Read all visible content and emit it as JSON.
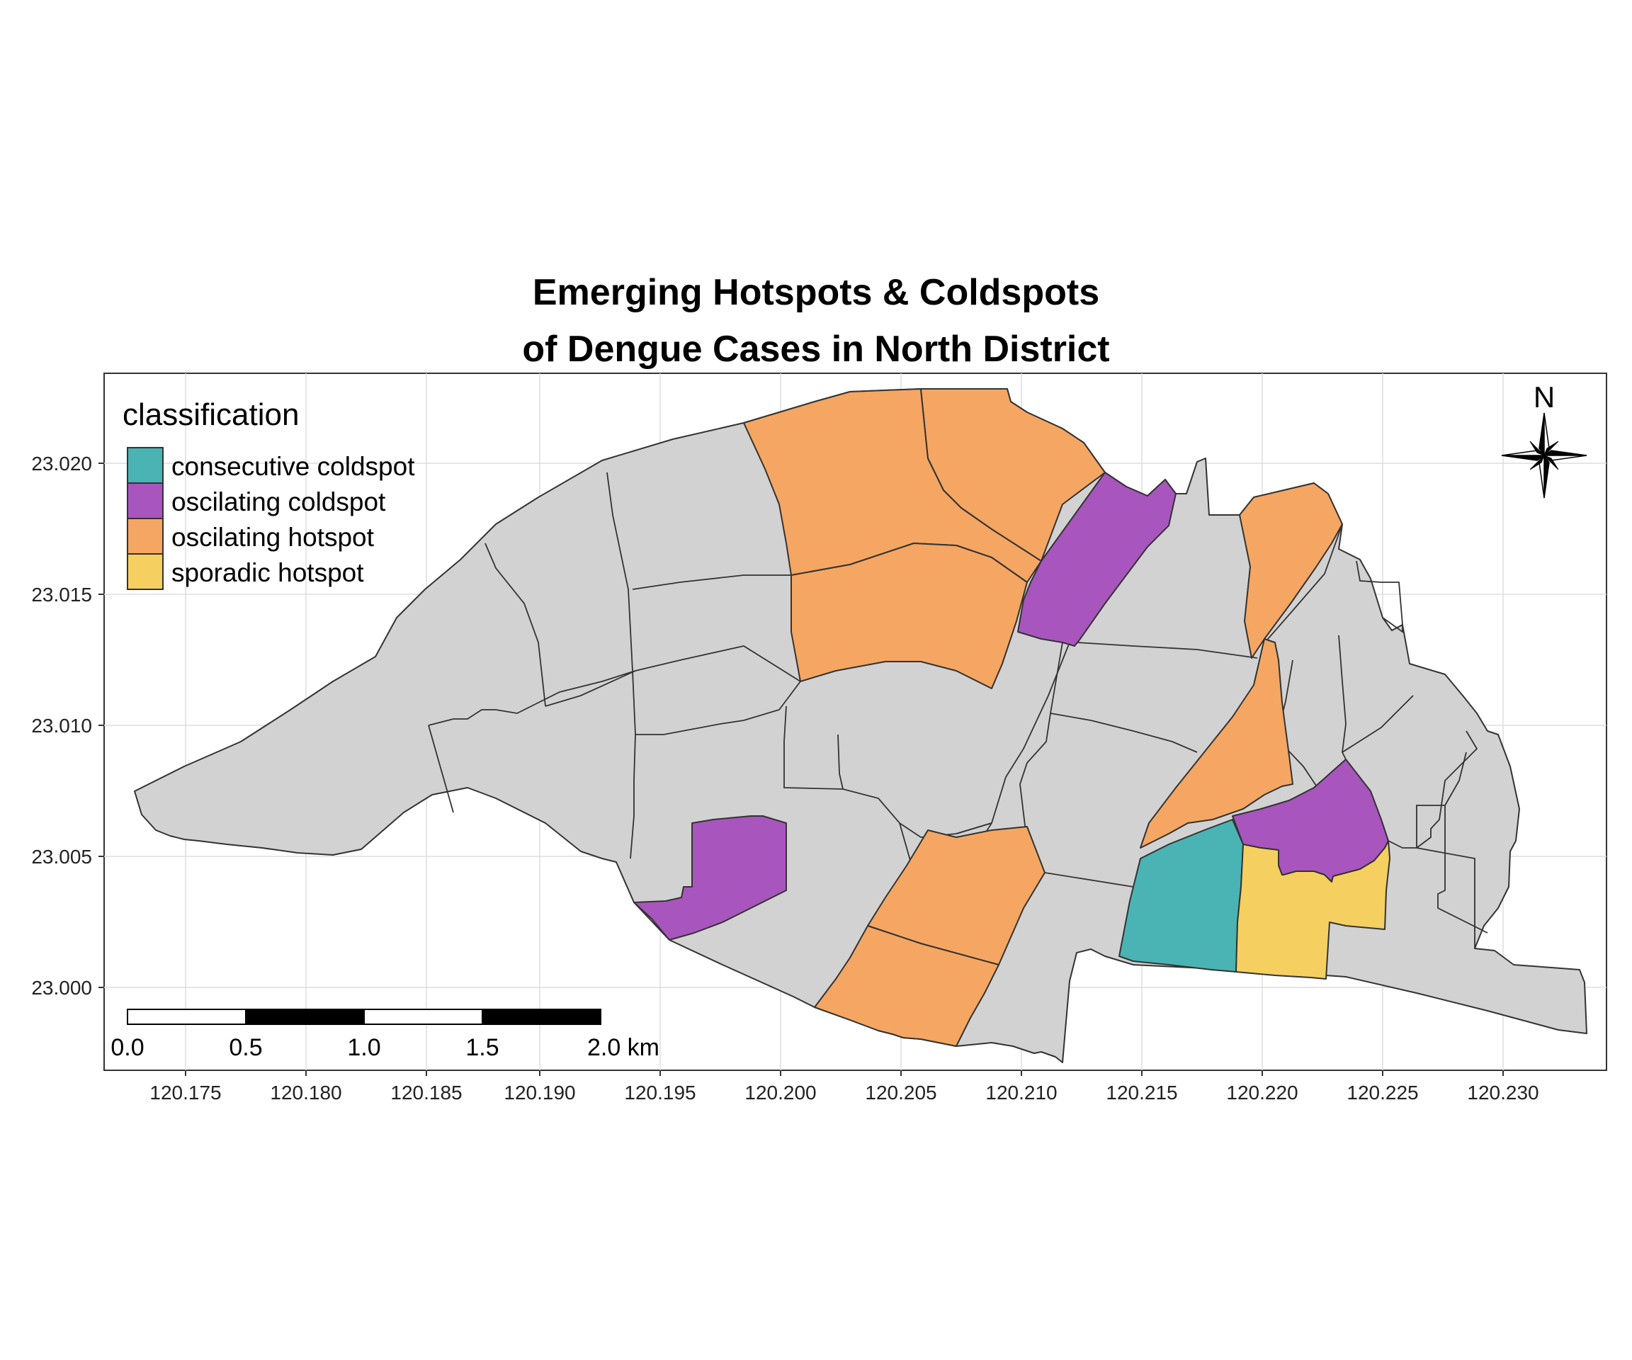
{
  "title": {
    "line1": "Emerging Hotspots & Coldspots",
    "line2": "of Dengue Cases in North District"
  },
  "axes": {
    "x_ticks": [
      "120.175",
      "120.180",
      "120.185",
      "120.190",
      "120.195",
      "120.200",
      "120.205",
      "120.210",
      "120.215",
      "120.220",
      "120.225",
      "120.230"
    ],
    "y_ticks": [
      "23.020",
      "23.015",
      "23.010",
      "23.005",
      "23.000"
    ],
    "grid": true
  },
  "legend": {
    "title": "classification",
    "position": "top-left",
    "items": [
      {
        "label": "consecutive coldspot",
        "color": "#4AB3B3"
      },
      {
        "label": "oscilating coldspot",
        "color": "#A855BE"
      },
      {
        "label": "oscilating hotspot",
        "color": "#F5A662"
      },
      {
        "label": "sporadic hotspot",
        "color": "#F5D060"
      }
    ]
  },
  "scale_bar": {
    "labels": [
      "0.0",
      "0.5",
      "1.0",
      "1.5",
      "2.0 km"
    ]
  },
  "north_arrow": {
    "label": "N"
  },
  "colors": {
    "unclassified": "#D2D2D2",
    "consecutive_coldspot": "#4AB3B3",
    "oscilating_coldspot": "#A855BE",
    "oscilating_hotspot": "#F5A662",
    "sporadic_hotspot": "#F5D060"
  }
}
